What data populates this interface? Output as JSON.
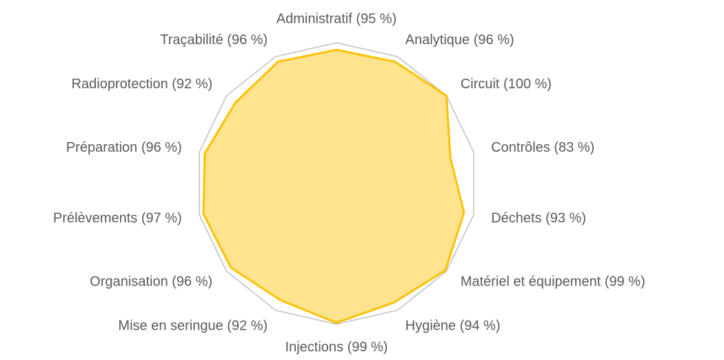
{
  "chart_data": {
    "type": "radar",
    "categories": [
      "Administratif (95 %)",
      "Analytique (96 %)",
      "Circuit (100 %)",
      "Contrôles (83 %)",
      "Déchets (93 %)",
      "Matériel et équipement (99 %)",
      "Hygiène (94 %)",
      "Injections (99 %)",
      "Mise en seringue (92 %)",
      "Organisation (96 %)",
      "Prélèvements (97 %)",
      "Préparation (96 %)",
      "Radioprotection (92 %)",
      "Traçabilité (96 %)"
    ],
    "values": [
      95,
      96,
      100,
      83,
      93,
      99,
      94,
      99,
      92,
      96,
      97,
      96,
      92,
      96
    ],
    "color": "#FFC000",
    "fill": "#FFE38F",
    "rlim": [
      0,
      100
    ],
    "grid": true,
    "grid_color": "#BFBFBF"
  }
}
